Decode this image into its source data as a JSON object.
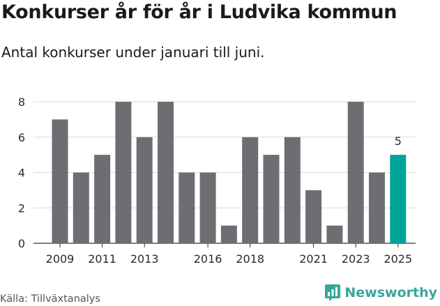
{
  "title": "Konkurser år för år i Ludvika kommun",
  "subtitle": "Antal konkurser under januari till juni.",
  "source": "Källa: Tillväxtanalys",
  "logo": "Newsworthy",
  "colors": {
    "bar": "#6e6e72",
    "highlight": "#00a398",
    "grid": "#d9d9d9",
    "baseline": "#333333",
    "logo": "#3aa59a"
  },
  "chart_data": {
    "type": "bar",
    "categories": [
      "2009",
      "2010",
      "2011",
      "2012",
      "2013",
      "2014",
      "2015",
      "2016",
      "2017",
      "2018",
      "2019",
      "2020",
      "2021",
      "2022",
      "2023",
      "2024",
      "2025"
    ],
    "values": [
      7,
      4,
      5,
      8,
      6,
      8,
      4,
      4,
      1,
      6,
      5,
      6,
      3,
      1,
      8,
      4,
      5
    ],
    "x_tick_labels": [
      "2009",
      "2011",
      "2013",
      "2016",
      "2018",
      "2021",
      "2023",
      "2025"
    ],
    "y_ticks": [
      0,
      2,
      4,
      6,
      8
    ],
    "ylim": [
      0,
      8
    ],
    "highlight_category": "2025",
    "data_labels": [
      {
        "category": "2025",
        "text": "5"
      }
    ],
    "grid": true,
    "legend": "none"
  }
}
